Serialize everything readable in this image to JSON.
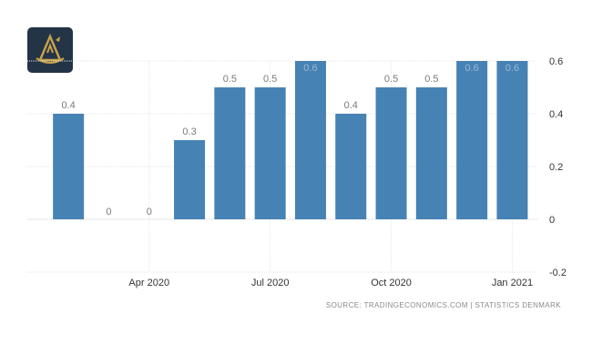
{
  "source_note": "SOURCE: TRADINGECONOMICS.COM  |  STATISTICS DENMARK",
  "colors": {
    "bar": "#4682b4",
    "grid": "#e6e6e6",
    "logo_bg": "#243447",
    "logo_gold": "#c9a24a"
  },
  "chart_data": {
    "type": "bar",
    "categories": [
      "2020-02",
      "2020-03",
      "2020-04",
      "2020-05",
      "2020-06",
      "2020-07",
      "2020-08",
      "2020-09",
      "2020-10",
      "2020-11",
      "2020-12",
      "2021-01"
    ],
    "values": [
      0.4,
      0,
      0,
      0.3,
      0.5,
      0.5,
      0.6,
      0.4,
      0.5,
      0.5,
      0.6,
      0.6
    ],
    "data_labels": [
      "0.4",
      "0",
      "0",
      "0.3",
      "0.5",
      "0.5",
      "0.6",
      "0.4",
      "0.5",
      "0.5",
      "0.6",
      "0.6"
    ],
    "x_tick_labels": [
      {
        "label": "Apr 2020",
        "at": "2020-04"
      },
      {
        "label": "Jul 2020",
        "at": "2020-07"
      },
      {
        "label": "Oct 2020",
        "at": "2020-10"
      },
      {
        "label": "Jan 2021",
        "at": "2021-01"
      }
    ],
    "y_ticks": [
      0.6,
      0.4,
      0.2,
      0,
      -0.2
    ],
    "y_tick_labels": [
      "0.6",
      "0.4",
      "0.2",
      "0",
      "-0.2"
    ],
    "ylim": [
      -0.2,
      0.6
    ],
    "yaxis_side": "right",
    "grid": true,
    "legend": false,
    "title": "",
    "xlabel": "",
    "ylabel": ""
  }
}
